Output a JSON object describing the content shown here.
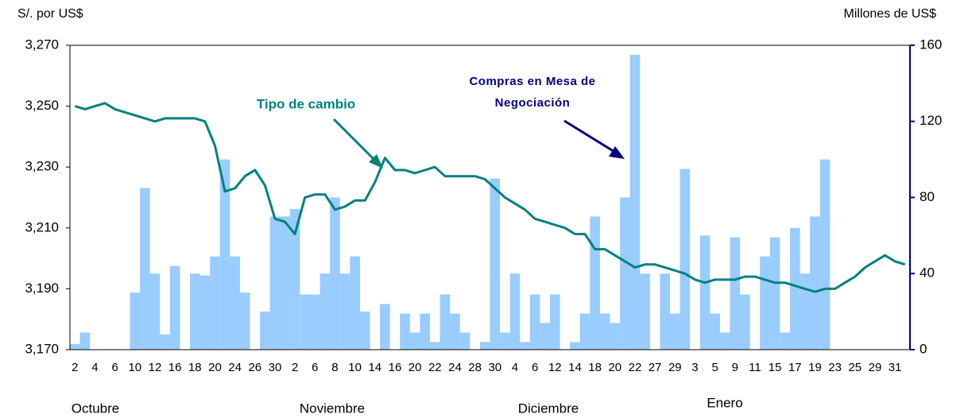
{
  "chart_data": {
    "type": "bar-line",
    "y_label": "S/. por US$",
    "y2_label": "Millones de US$",
    "x_groups": [
      "Octubre",
      "Noviembre",
      "Diciembre",
      "Enero"
    ],
    "annotations": [
      {
        "lines": [
          "Tipo de cambio"
        ]
      },
      {
        "lines": [
          "Compras en Mesa de",
          "Negociación"
        ]
      }
    ],
    "categories": [
      "2",
      null,
      "4",
      null,
      "6",
      null,
      "10",
      null,
      "12",
      null,
      "16",
      null,
      "18",
      null,
      "20",
      null,
      "24",
      null,
      "26",
      null,
      "30",
      null,
      "2",
      null,
      "6",
      null,
      "8",
      null,
      "10",
      null,
      "14",
      null,
      "16",
      null,
      "20",
      null,
      "22",
      null,
      "24",
      null,
      "28",
      null,
      "30",
      null,
      "4",
      null,
      "6",
      null,
      "12",
      null,
      "14",
      null,
      "18",
      null,
      "20",
      null,
      "22",
      null,
      "27",
      null,
      "29",
      null,
      "3",
      null,
      "5",
      null,
      "9",
      null,
      "11",
      null,
      "15",
      null,
      "17",
      null,
      "19",
      null,
      "23",
      null,
      "25",
      null,
      "29",
      null,
      "31",
      null
    ],
    "series": [
      {
        "name": "Compras en Mesa de Negociación",
        "type": "bar",
        "axis": "y2",
        "color": "#99ccff",
        "values": [
          3,
          9,
          0,
          0,
          0,
          0,
          30,
          85,
          40,
          8,
          44,
          0,
          40,
          39,
          49,
          100,
          49,
          30,
          0,
          20,
          70,
          70,
          74,
          29,
          29,
          40,
          80,
          40,
          49,
          20,
          0,
          24,
          0,
          19,
          9,
          19,
          4,
          29,
          19,
          9,
          0,
          4,
          90,
          9,
          40,
          4,
          29,
          14,
          29,
          0,
          4,
          19,
          70,
          19,
          14,
          80,
          155,
          40,
          0,
          40,
          19,
          95,
          0,
          60,
          19,
          9,
          59,
          29,
          0,
          49,
          59,
          9,
          64,
          40,
          70,
          100,
          0,
          0,
          0,
          0,
          0,
          0,
          0,
          0
        ]
      },
      {
        "name": "Tipo de cambio",
        "type": "line",
        "axis": "y",
        "color": "#008080",
        "values": [
          3250,
          3249,
          3250,
          3251,
          3249,
          3248,
          3247,
          3246,
          3245,
          3246,
          3246,
          3246,
          3246,
          3245,
          3237,
          3222,
          3223,
          3227,
          3229,
          3224,
          3213,
          3212,
          3208,
          3220,
          3221,
          3221,
          3216,
          3217,
          3219,
          3219,
          3225,
          3233,
          3229,
          3229,
          3228,
          3229,
          3230,
          3227,
          3227,
          3227,
          3227,
          3226,
          3223,
          3220,
          3218,
          3216,
          3213,
          3212,
          3211,
          3210,
          3208,
          3208,
          3203,
          3203,
          3201,
          3199,
          3197,
          3198,
          3198,
          3197,
          3196,
          3195,
          3193,
          3192,
          3193,
          3193,
          3193,
          3194,
          3194,
          3193,
          3192,
          3192,
          3191,
          3190,
          3189,
          3190,
          3190,
          3192,
          3194,
          3197,
          3199,
          3201,
          3199,
          3198
        ]
      }
    ],
    "ylim": [
      3170,
      3270
    ],
    "yticks": [
      {
        "value": 3170,
        "label": "3,170"
      },
      {
        "value": 3190,
        "label": "3,190"
      },
      {
        "value": 3210,
        "label": "3,210"
      },
      {
        "value": 3230,
        "label": "3,230"
      },
      {
        "value": 3250,
        "label": "3,250"
      },
      {
        "value": 3270,
        "label": "3,270"
      }
    ],
    "y2lim": [
      0,
      160
    ],
    "y2ticks": [
      0,
      40,
      80,
      120,
      160
    ]
  }
}
